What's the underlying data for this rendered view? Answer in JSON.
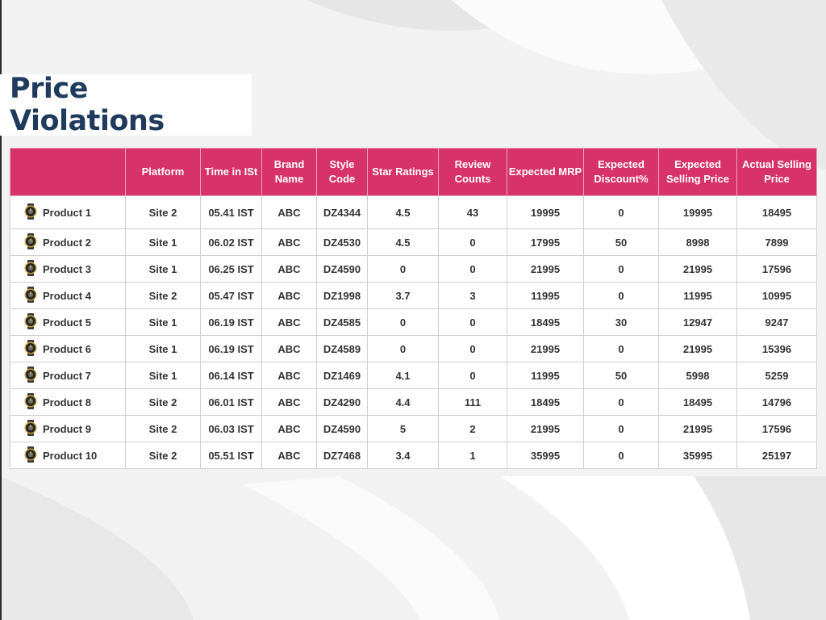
{
  "page": {
    "title": "Price Violations"
  },
  "table": {
    "headers": [
      "",
      "Platform",
      "Time in ISt",
      "Brand Name",
      "Style Code",
      "Star Ratings",
      "Review Counts",
      "Expected MRP",
      "Expected Discount%",
      "Expected Selling Price",
      "Actual Selling Price"
    ],
    "rows": [
      {
        "product": "Product 1",
        "platform": "Site 2",
        "time": "05.41 IST",
        "brand": "ABC",
        "style": "DZ4344",
        "stars": "4.5",
        "reviews": "43",
        "mrp": "19995",
        "discount": "0",
        "esp": "19995",
        "asp": "18495"
      },
      {
        "product": "Product 2",
        "platform": "Site 1",
        "time": "06.02 IST",
        "brand": "ABC",
        "style": "DZ4530",
        "stars": "4.5",
        "reviews": "0",
        "mrp": "17995",
        "discount": "50",
        "esp": "8998",
        "asp": "7899"
      },
      {
        "product": "Product 3",
        "platform": "Site 1",
        "time": "06.25 IST",
        "brand": "ABC",
        "style": "DZ4590",
        "stars": "0",
        "reviews": "0",
        "mrp": "21995",
        "discount": "0",
        "esp": "21995",
        "asp": "17596"
      },
      {
        "product": "Product 4",
        "platform": "Site 2",
        "time": "05.47 IST",
        "brand": "ABC",
        "style": "DZ1998",
        "stars": "3.7",
        "reviews": "3",
        "mrp": "11995",
        "discount": "0",
        "esp": "11995",
        "asp": "10995"
      },
      {
        "product": "Product 5",
        "platform": "Site 1",
        "time": "06.19 IST",
        "brand": "ABC",
        "style": "DZ4585",
        "stars": "0",
        "reviews": "0",
        "mrp": "18495",
        "discount": "30",
        "esp": "12947",
        "asp": "9247"
      },
      {
        "product": "Product 6",
        "platform": "Site 1",
        "time": "06.19 IST",
        "brand": "ABC",
        "style": "DZ4589",
        "stars": "0",
        "reviews": "0",
        "mrp": "21995",
        "discount": "0",
        "esp": "21995",
        "asp": "15396"
      },
      {
        "product": "Product 7",
        "platform": "Site 1",
        "time": "06.14 IST",
        "brand": "ABC",
        "style": "DZ1469",
        "stars": "4.1",
        "reviews": "0",
        "mrp": "11995",
        "discount": "50",
        "esp": "5998",
        "asp": "5259"
      },
      {
        "product": "Product 8",
        "platform": "Site 2",
        "time": "06.01 IST",
        "brand": "ABC",
        "style": "DZ4290",
        "stars": "4.4",
        "reviews": "111",
        "mrp": "18495",
        "discount": "0",
        "esp": "18495",
        "asp": "14796"
      },
      {
        "product": "Product 9",
        "platform": "Site 2",
        "time": "06.03 IST",
        "brand": "ABC",
        "style": "DZ4590",
        "stars": "5",
        "reviews": "2",
        "mrp": "21995",
        "discount": "0",
        "esp": "21995",
        "asp": "17596"
      },
      {
        "product": "Product 10",
        "platform": "Site 2",
        "time": "05.51 IST",
        "brand": "ABC",
        "style": "DZ7468",
        "stars": "3.4",
        "reviews": "1",
        "mrp": "35995",
        "discount": "0",
        "esp": "35995",
        "asp": "25197"
      }
    ]
  },
  "icons": {
    "product": "watch-icon"
  },
  "colors": {
    "header_bg": "#d7336a",
    "title": "#1f3a5c",
    "text": "#333333"
  }
}
